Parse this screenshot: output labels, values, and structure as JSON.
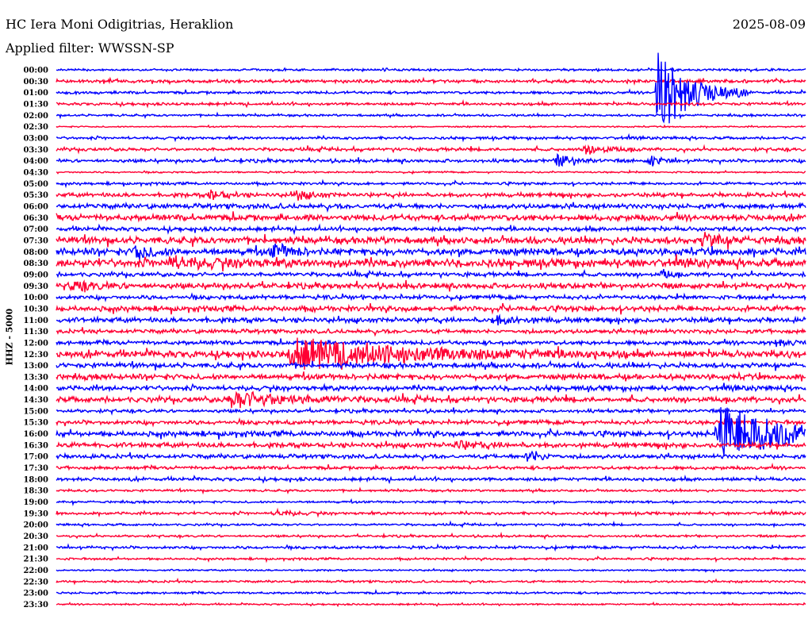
{
  "header": {
    "station": "HC Iera Moni Odigitrias, Heraklion",
    "date": "2025-08-09",
    "filter": "Applied filter: WWSSN-SP"
  },
  "chart_data": {
    "type": "line",
    "title": "HC Iera Moni Odigitrias, Heraklion",
    "ylabel": "HHZ - 5000",
    "minutes_per_row": 30,
    "colors": [
      "#0000ff",
      "#ff0033"
    ],
    "row_labels": [
      "00:00",
      "00:30",
      "01:00",
      "01:30",
      "02:00",
      "02:30",
      "03:00",
      "03:30",
      "04:00",
      "04:30",
      "05:00",
      "05:30",
      "06:00",
      "06:30",
      "07:00",
      "07:30",
      "08:00",
      "08:30",
      "09:00",
      "09:30",
      "10:00",
      "10:30",
      "11:00",
      "11:30",
      "12:00",
      "12:30",
      "13:00",
      "13:30",
      "14:00",
      "14:30",
      "15:00",
      "15:30",
      "16:00",
      "16:30",
      "17:00",
      "17:30",
      "18:00",
      "18:30",
      "19:00",
      "19:30",
      "20:00",
      "20:30",
      "21:00",
      "21:30",
      "22:00",
      "22:30",
      "23:00",
      "23:30"
    ],
    "noise_level": [
      0.08,
      0.12,
      0.1,
      0.1,
      0.08,
      0.05,
      0.1,
      0.12,
      0.12,
      0.06,
      0.1,
      0.15,
      0.18,
      0.22,
      0.15,
      0.25,
      0.25,
      0.3,
      0.15,
      0.2,
      0.15,
      0.2,
      0.18,
      0.15,
      0.15,
      0.25,
      0.18,
      0.2,
      0.18,
      0.2,
      0.12,
      0.15,
      0.2,
      0.18,
      0.15,
      0.12,
      0.12,
      0.08,
      0.08,
      0.1,
      0.08,
      0.08,
      0.1,
      0.08,
      0.06,
      0.08,
      0.08,
      0.06
    ],
    "events": [
      {
        "row": 2,
        "minute": 24.1,
        "amplitude": 4.0,
        "duration": 1.2
      },
      {
        "row": 32,
        "minute": 26.5,
        "amplitude": 2.4,
        "duration": 3.0
      },
      {
        "row": 25,
        "minute": 9.4,
        "amplitude": 1.3,
        "duration": 4.5
      },
      {
        "row": 29,
        "minute": 7.0,
        "amplitude": 0.7,
        "duration": 2.0
      },
      {
        "row": 8,
        "minute": 20.1,
        "amplitude": 0.6,
        "duration": 0.6
      },
      {
        "row": 8,
        "minute": 23.8,
        "amplitude": 0.5,
        "duration": 0.4
      },
      {
        "row": 7,
        "minute": 21.2,
        "amplitude": 0.4,
        "duration": 0.8
      },
      {
        "row": 16,
        "minute": 3.2,
        "amplitude": 0.6,
        "duration": 0.6
      },
      {
        "row": 16,
        "minute": 8.7,
        "amplitude": 0.7,
        "duration": 0.6
      },
      {
        "row": 15,
        "minute": 25.9,
        "amplitude": 0.5,
        "duration": 0.8
      },
      {
        "row": 34,
        "minute": 18.9,
        "amplitude": 0.6,
        "duration": 0.5
      },
      {
        "row": 22,
        "minute": 17.5,
        "amplitude": 0.3,
        "duration": 1.0
      },
      {
        "row": 24,
        "minute": 28.7,
        "amplitude": 0.3,
        "duration": 0.6
      },
      {
        "row": 19,
        "minute": 0.6,
        "amplitude": 0.35,
        "duration": 1.0
      },
      {
        "row": 17,
        "minute": 4.5,
        "amplitude": 0.4,
        "duration": 2.0
      },
      {
        "row": 11,
        "minute": 6.2,
        "amplitude": 0.4,
        "duration": 0.6
      },
      {
        "row": 11,
        "minute": 9.6,
        "amplitude": 0.4,
        "duration": 0.6
      },
      {
        "row": 18,
        "minute": 24.3,
        "amplitude": 0.35,
        "duration": 0.3
      },
      {
        "row": 39,
        "minute": 8.8,
        "amplitude": 0.25,
        "duration": 0.8
      },
      {
        "row": 33,
        "minute": 16.0,
        "amplitude": 0.3,
        "duration": 1.0
      }
    ]
  }
}
